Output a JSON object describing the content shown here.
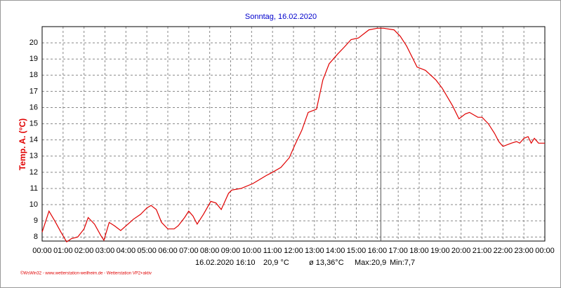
{
  "chart_data": {
    "type": "line",
    "title": "Sonntag, 16.02.2020",
    "y_label": "Temp. A. (°C)",
    "info": [
      "16.02.2020",
      "16:10",
      "20,9 °C",
      "ø 13,36°C",
      "Max:20,9",
      "Min:7,7"
    ],
    "footer": "©WsWin32 - www.wetterstation-weilheim.de - Wetterstation VP2+aktiv",
    "grid": true,
    "cursor_x": 16.17,
    "xlim": [
      0,
      24
    ],
    "ylim": [
      7.75,
      21.0
    ],
    "yticks": [
      8,
      9,
      10,
      11,
      12,
      13,
      14,
      15,
      16,
      17,
      18,
      19,
      20
    ],
    "xticks": [
      {
        "value": 0,
        "label": "00:00"
      },
      {
        "value": 1,
        "label": "01:00"
      },
      {
        "value": 2,
        "label": "02:00"
      },
      {
        "value": 3,
        "label": "03:00"
      },
      {
        "value": 4,
        "label": "04:00"
      },
      {
        "value": 5,
        "label": "05:00"
      },
      {
        "value": 6,
        "label": "06:00"
      },
      {
        "value": 7,
        "label": "07:00"
      },
      {
        "value": 8,
        "label": "08:00"
      },
      {
        "value": 9,
        "label": "09:00"
      },
      {
        "value": 10,
        "label": "10:00"
      },
      {
        "value": 11,
        "label": "11:00"
      },
      {
        "value": 12,
        "label": "12:00"
      },
      {
        "value": 13,
        "label": "13:00"
      },
      {
        "value": 14,
        "label": "14:00"
      },
      {
        "value": 15,
        "label": "15:00"
      },
      {
        "value": 16,
        "label": "16:00"
      },
      {
        "value": 17,
        "label": "17:00"
      },
      {
        "value": 18,
        "label": "18:00"
      },
      {
        "value": 19,
        "label": "19:00"
      },
      {
        "value": 20,
        "label": "20:00"
      },
      {
        "value": 21,
        "label": "21:00"
      },
      {
        "value": 22,
        "label": "22:00"
      },
      {
        "value": 23,
        "label": "23:00"
      },
      {
        "value": 24,
        "label": "00:00"
      }
    ],
    "x": [
      0,
      0.33,
      0.6,
      0.9,
      1.17,
      1.4,
      1.7,
      2.0,
      2.2,
      2.5,
      2.8,
      2.95,
      3.2,
      3.45,
      3.75,
      4.1,
      4.36,
      4.7,
      5.0,
      5.2,
      5.45,
      5.7,
      6.0,
      6.3,
      6.5,
      6.8,
      7.0,
      7.2,
      7.4,
      7.7,
      8.05,
      8.3,
      8.55,
      8.9,
      9.05,
      9.5,
      10.06,
      10.7,
      11.0,
      11.4,
      11.8,
      12.07,
      12.4,
      12.7,
      13.1,
      13.4,
      13.7,
      14.1,
      14.4,
      14.75,
      15.1,
      15.6,
      16.0,
      16.3,
      16.8,
      17.1,
      17.4,
      17.9,
      18.3,
      18.8,
      19.1,
      19.6,
      19.9,
      20.2,
      20.4,
      20.8,
      21.0,
      21.3,
      21.6,
      21.8,
      22.0,
      22.4,
      22.65,
      22.8,
      23.0,
      23.2,
      23.35,
      23.5,
      23.7,
      24.0
    ],
    "series": [
      {
        "name": "Temp. A.",
        "color": "#e00000",
        "values": [
          8.3,
          9.6,
          9.0,
          8.3,
          7.7,
          7.9,
          8.0,
          8.5,
          9.2,
          8.8,
          8.1,
          7.8,
          8.9,
          8.7,
          8.4,
          8.8,
          9.1,
          9.4,
          9.8,
          9.95,
          9.7,
          8.9,
          8.5,
          8.5,
          8.7,
          9.2,
          9.6,
          9.3,
          8.8,
          9.4,
          10.2,
          10.1,
          9.7,
          10.7,
          10.9,
          11.0,
          11.3,
          11.8,
          12.0,
          12.3,
          12.9,
          13.7,
          14.6,
          15.7,
          15.9,
          17.7,
          18.7,
          19.3,
          19.7,
          20.2,
          20.3,
          20.8,
          20.9,
          20.9,
          20.8,
          20.4,
          19.8,
          18.5,
          18.3,
          17.7,
          17.2,
          16.1,
          15.3,
          15.6,
          15.7,
          15.4,
          15.4,
          15.0,
          14.4,
          13.9,
          13.6,
          13.8,
          13.9,
          13.8,
          14.1,
          14.2,
          13.8,
          14.1,
          13.8,
          13.8
        ]
      }
    ]
  }
}
